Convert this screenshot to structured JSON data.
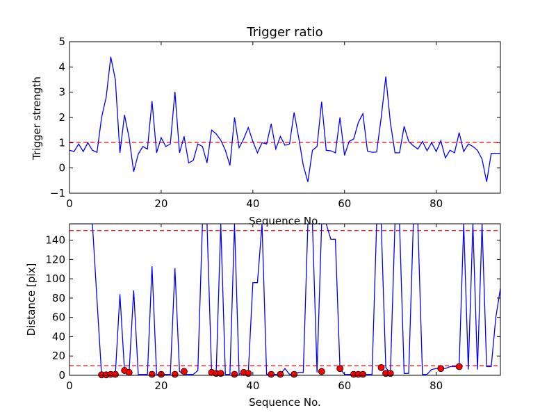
{
  "chart_data": [
    {
      "type": "line",
      "title": "Trigger ratio",
      "xlabel": "Sequence No.",
      "ylabel": "Trigger strength",
      "xlim": [
        0,
        94
      ],
      "ylim": [
        -1,
        5
      ],
      "xticks": [
        0,
        20,
        40,
        60,
        80
      ],
      "yticks": [
        -1,
        0,
        1,
        2,
        3,
        4,
        5
      ],
      "grid": false,
      "threshold": 1.02,
      "colors": {
        "line": "#0000ff",
        "threshold": "#ff0000"
      },
      "series": [
        {
          "x": [
            0,
            1,
            2,
            3,
            4,
            5,
            6,
            7,
            8,
            9,
            10,
            11,
            12,
            13,
            14,
            15,
            16,
            17,
            18,
            19,
            20,
            21,
            22,
            23,
            24,
            25,
            26,
            27,
            28,
            29,
            30,
            31,
            32,
            33,
            34,
            35,
            36,
            37,
            38,
            39,
            40,
            41,
            42,
            43,
            44,
            45,
            46,
            47,
            48,
            49,
            50,
            51,
            52,
            53,
            54,
            55,
            56,
            57,
            58,
            59,
            60,
            61,
            62,
            63,
            64,
            65,
            66,
            67,
            68,
            69,
            70,
            71,
            72,
            73,
            74,
            75,
            76,
            77,
            78,
            79,
            80,
            81,
            82,
            83,
            84,
            85,
            86,
            87,
            88,
            89,
            90,
            91,
            92,
            93,
            94
          ],
          "values": [
            0.7,
            0.65,
            0.95,
            0.65,
            1.0,
            0.7,
            0.62,
            2.0,
            2.8,
            4.4,
            3.5,
            0.6,
            2.1,
            1.2,
            -0.15,
            0.55,
            0.85,
            0.75,
            2.65,
            0.6,
            1.2,
            0.85,
            0.95,
            3.02,
            0.6,
            1.25,
            0.2,
            0.3,
            0.95,
            0.85,
            0.2,
            1.5,
            1.35,
            1.1,
            0.7,
            0.1,
            2.0,
            0.8,
            1.15,
            1.6,
            1.05,
            0.6,
            1.0,
            0.95,
            1.75,
            0.75,
            1.25,
            0.9,
            0.95,
            2.2,
            1.2,
            0.1,
            -0.55,
            0.7,
            0.85,
            2.62,
            0.7,
            0.68,
            0.6,
            2.0,
            0.5,
            1.05,
            1.15,
            1.8,
            2.15,
            0.67,
            0.62,
            0.63,
            2.0,
            3.62,
            1.8,
            0.6,
            0.6,
            1.65,
            1.05,
            0.88,
            0.75,
            1.05,
            0.68,
            1.0,
            0.65,
            1.08,
            0.4,
            0.7,
            0.6,
            1.4,
            0.65,
            0.95,
            0.85,
            0.7,
            0.35,
            -0.55,
            0.58,
            0.58,
            0.58
          ]
        }
      ]
    },
    {
      "type": "line",
      "title": "",
      "xlabel": "Sequence No.",
      "ylabel": "Distance [pix]",
      "xlim": [
        0,
        94
      ],
      "ylim": [
        0,
        157
      ],
      "xticks": [
        0,
        20,
        40,
        60,
        80
      ],
      "yticks": [
        0,
        20,
        40,
        60,
        80,
        100,
        120,
        140
      ],
      "grid": false,
      "thresholds": [
        150,
        10
      ],
      "colors": {
        "line": "#0000ff",
        "threshold": "#ff0000",
        "marker": "#ff0000"
      },
      "series": [
        {
          "x": [
            0,
            1,
            2,
            3,
            4,
            5,
            6,
            7,
            8,
            9,
            10,
            11,
            12,
            13,
            14,
            15,
            16,
            17,
            18,
            19,
            20,
            21,
            22,
            23,
            24,
            25,
            26,
            27,
            28,
            29,
            30,
            31,
            32,
            33,
            34,
            35,
            36,
            37,
            38,
            39,
            40,
            41,
            42,
            43,
            44,
            45,
            46,
            47,
            48,
            49,
            50,
            51,
            52,
            53,
            54,
            55,
            56,
            57,
            58,
            59,
            60,
            61,
            62,
            63,
            64,
            65,
            66,
            67,
            68,
            69,
            70,
            71,
            72,
            73,
            74,
            75,
            76,
            77,
            78,
            79,
            80,
            81,
            82,
            83,
            84,
            85,
            86,
            87,
            88,
            89,
            90,
            91,
            92,
            93,
            94
          ],
          "values": [
            157,
            157,
            157,
            157,
            157,
            157,
            78,
            0.5,
            0.5,
            1,
            1,
            84,
            5,
            3,
            88,
            1,
            1,
            1,
            113,
            1,
            1,
            1,
            1,
            111,
            4,
            1,
            1,
            1,
            5,
            157,
            157,
            3,
            2,
            157,
            1,
            1,
            157,
            1,
            3,
            2,
            96,
            96,
            157,
            1,
            1,
            1,
            1,
            7,
            1,
            1,
            3,
            3,
            157,
            157,
            3,
            157,
            157,
            141,
            141,
            7,
            1,
            1,
            1,
            1,
            1,
            1,
            1,
            157,
            157,
            8,
            2,
            157,
            157,
            2,
            2,
            157,
            157,
            1,
            1,
            6,
            7,
            7,
            7,
            9,
            9,
            9,
            157,
            6,
            157,
            6,
            157,
            9,
            9,
            60,
            90
          ]
        }
      ],
      "markers": {
        "x": [
          7,
          8,
          9,
          10,
          12,
          13,
          18,
          20,
          23,
          25,
          31,
          32,
          33,
          36,
          38,
          39,
          44,
          46,
          49,
          55,
          59,
          62,
          63,
          64,
          68,
          69,
          70,
          81,
          85
        ],
        "values": [
          0.5,
          0.5,
          1,
          1,
          5,
          3,
          1,
          1,
          1,
          4,
          3,
          2,
          2,
          1,
          3,
          2,
          1,
          1,
          1,
          4,
          7,
          1,
          1,
          1,
          8,
          2,
          2,
          7,
          9
        ]
      }
    }
  ]
}
